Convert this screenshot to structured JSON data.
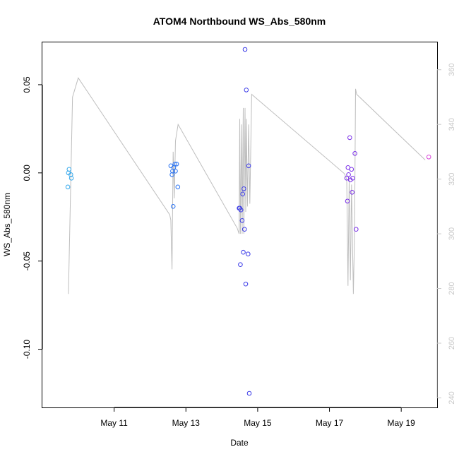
{
  "chart_data": {
    "type": "scatter",
    "title": "ATOM4 Northbound WS_Abs_580nm",
    "xlabel": "Date",
    "ylabel": "WS_Abs_580nm",
    "xlim": [
      "2018-05-09 00:00",
      "2018-05-20 00:00"
    ],
    "ylim": [
      -0.133,
      0.074
    ],
    "y2lim": [
      236.5,
      370
    ],
    "x_ticks": [
      {
        "value": "2018-05-11 00:00",
        "label": "May 11"
      },
      {
        "value": "2018-05-13 00:00",
        "label": "May 13"
      },
      {
        "value": "2018-05-15 00:00",
        "label": "May 15"
      },
      {
        "value": "2018-05-17 00:00",
        "label": "May 17"
      },
      {
        "value": "2018-05-19 00:00",
        "label": "May 19"
      }
    ],
    "y_ticks": [
      0.05,
      0.0,
      -0.05,
      -0.1
    ],
    "y_tick_labels": [
      "0.05",
      "0.00",
      "-0.05",
      "-0.10"
    ],
    "y2_ticks": [
      240,
      260,
      280,
      300,
      320,
      340,
      360
    ],
    "grid": false,
    "legend": "none",
    "colors": {
      "line": "#bebebe",
      "right_axis": "#c8c8c8"
    },
    "points": [
      {
        "x": "2018-05-09 17:04",
        "y": -0.008,
        "color": "#33a8ec"
      },
      {
        "x": "2018-05-09 17:26",
        "y": 0.0,
        "color": "#33a8ec"
      },
      {
        "x": "2018-05-09 17:50",
        "y": 0.002,
        "color": "#33a8ec"
      },
      {
        "x": "2018-05-09 19:03",
        "y": -0.001,
        "color": "#33a8ec"
      },
      {
        "x": "2018-05-09 19:26",
        "y": -0.003,
        "color": "#33a8ec"
      },
      {
        "x": "2018-05-12 13:55",
        "y": 0.004,
        "color": "#2a73f2"
      },
      {
        "x": "2018-05-12 14:43",
        "y": -0.001,
        "color": "#2a73f2"
      },
      {
        "x": "2018-05-12 15:05",
        "y": 0.001,
        "color": "#2a73f2"
      },
      {
        "x": "2018-05-12 15:28",
        "y": -0.019,
        "color": "#2a73f2"
      },
      {
        "x": "2018-05-12 15:51",
        "y": 0.003,
        "color": "#2a73f2"
      },
      {
        "x": "2018-05-12 16:38",
        "y": 0.005,
        "color": "#2a73f2"
      },
      {
        "x": "2018-05-12 17:02",
        "y": 0.001,
        "color": "#2a73f2"
      },
      {
        "x": "2018-05-12 17:48",
        "y": 0.005,
        "color": "#2a73f2"
      },
      {
        "x": "2018-05-12 18:36",
        "y": -0.008,
        "color": "#2a73f2"
      },
      {
        "x": "2018-05-14 11:34",
        "y": -0.02,
        "color": "#3b3be8"
      },
      {
        "x": "2018-05-14 12:00",
        "y": -0.02,
        "color": "#3b3be8"
      },
      {
        "x": "2018-05-14 12:25",
        "y": -0.052,
        "color": "#3b3be8"
      },
      {
        "x": "2018-05-14 12:48",
        "y": -0.021,
        "color": "#3b3be8"
      },
      {
        "x": "2018-05-14 13:36",
        "y": -0.027,
        "color": "#3b3be8"
      },
      {
        "x": "2018-05-14 14:00",
        "y": -0.012,
        "color": "#3b3be8"
      },
      {
        "x": "2018-05-14 14:22",
        "y": -0.045,
        "color": "#3b3be8"
      },
      {
        "x": "2018-05-14 14:45",
        "y": -0.009,
        "color": "#3b3be8"
      },
      {
        "x": "2018-05-14 15:10",
        "y": -0.032,
        "color": "#3b3be8"
      },
      {
        "x": "2018-05-14 15:33",
        "y": 0.07,
        "color": "#3b3be8"
      },
      {
        "x": "2018-05-14 16:00",
        "y": -0.063,
        "color": "#3b3be8"
      },
      {
        "x": "2018-05-14 16:24",
        "y": 0.047,
        "color": "#3b3be8"
      },
      {
        "x": "2018-05-14 17:35",
        "y": -0.046,
        "color": "#3b3be8"
      },
      {
        "x": "2018-05-14 17:58",
        "y": 0.004,
        "color": "#3b3be8"
      },
      {
        "x": "2018-05-14 18:22",
        "y": -0.125,
        "color": "#3b3be8"
      },
      {
        "x": "2018-05-17 11:34",
        "y": -0.003,
        "color": "#7a2ee8"
      },
      {
        "x": "2018-05-17 12:00",
        "y": -0.016,
        "color": "#7a2ee8"
      },
      {
        "x": "2018-05-17 12:25",
        "y": 0.003,
        "color": "#7a2ee8"
      },
      {
        "x": "2018-05-17 12:48",
        "y": -0.001,
        "color": "#7a2ee8"
      },
      {
        "x": "2018-05-17 13:36",
        "y": 0.02,
        "color": "#7a2ee8"
      },
      {
        "x": "2018-05-17 14:00",
        "y": -0.004,
        "color": "#7a2ee8"
      },
      {
        "x": "2018-05-17 14:45",
        "y": 0.002,
        "color": "#7a2ee8"
      },
      {
        "x": "2018-05-17 15:10",
        "y": -0.011,
        "color": "#7a2ee8"
      },
      {
        "x": "2018-05-17 15:33",
        "y": -0.003,
        "color": "#7a2ee8"
      },
      {
        "x": "2018-05-17 17:02",
        "y": 0.011,
        "color": "#7a2ee8"
      },
      {
        "x": "2018-05-17 17:50",
        "y": -0.032,
        "color": "#7a2ee8"
      },
      {
        "x": "2018-05-19 18:26",
        "y": 0.009,
        "color": "#d844d8"
      }
    ],
    "line_series": {
      "axis": "right",
      "color": "#bebebe",
      "points": [
        {
          "x": "2018-05-09 17:26",
          "y": 278
        },
        {
          "x": "2018-05-09 20:10",
          "y": 350
        },
        {
          "x": "2018-05-10 00:00",
          "y": 357
        },
        {
          "x": "2018-05-12 13:10",
          "y": 307
        },
        {
          "x": "2018-05-12 13:55",
          "y": 305
        },
        {
          "x": "2018-05-12 14:43",
          "y": 287
        },
        {
          "x": "2018-05-12 15:28",
          "y": 330
        },
        {
          "x": "2018-05-12 16:13",
          "y": 313
        },
        {
          "x": "2018-05-12 17:02",
          "y": 334
        },
        {
          "x": "2018-05-12 18:46",
          "y": 340
        },
        {
          "x": "2018-05-14 10:22",
          "y": 302
        },
        {
          "x": "2018-05-14 11:34",
          "y": 300
        },
        {
          "x": "2018-05-14 12:00",
          "y": 342
        },
        {
          "x": "2018-05-14 12:25",
          "y": 300
        },
        {
          "x": "2018-05-14 13:12",
          "y": 340
        },
        {
          "x": "2018-05-14 13:36",
          "y": 300
        },
        {
          "x": "2018-05-14 14:22",
          "y": 346
        },
        {
          "x": "2018-05-14 14:45",
          "y": 300
        },
        {
          "x": "2018-05-14 15:33",
          "y": 346
        },
        {
          "x": "2018-05-14 16:00",
          "y": 308
        },
        {
          "x": "2018-05-14 16:24",
          "y": 342
        },
        {
          "x": "2018-05-14 17:10",
          "y": 310
        },
        {
          "x": "2018-05-14 17:58",
          "y": 340
        },
        {
          "x": "2018-05-14 18:46",
          "y": 311
        },
        {
          "x": "2018-05-14 20:00",
          "y": 351
        },
        {
          "x": "2018-05-17 10:00",
          "y": 322
        },
        {
          "x": "2018-05-17 11:34",
          "y": 320
        },
        {
          "x": "2018-05-17 12:25",
          "y": 281
        },
        {
          "x": "2018-05-17 13:12",
          "y": 320
        },
        {
          "x": "2018-05-17 14:00",
          "y": 283
        },
        {
          "x": "2018-05-17 14:45",
          "y": 318
        },
        {
          "x": "2018-05-17 16:00",
          "y": 278
        },
        {
          "x": "2018-05-17 16:48",
          "y": 300
        },
        {
          "x": "2018-05-17 17:26",
          "y": 353
        },
        {
          "x": "2018-05-17 18:13",
          "y": 351
        },
        {
          "x": "2018-05-19 16:00",
          "y": 327
        }
      ]
    }
  }
}
